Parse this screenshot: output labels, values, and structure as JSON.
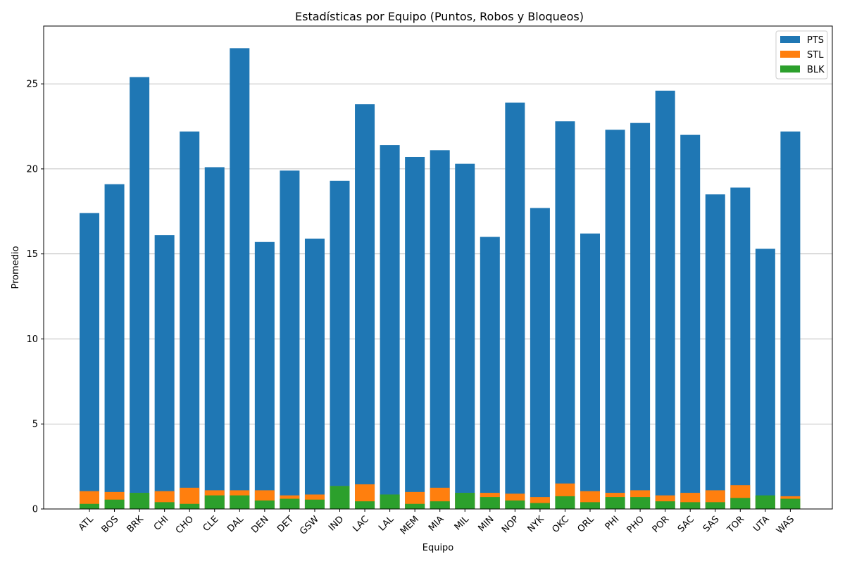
{
  "chart_data": {
    "type": "bar",
    "stacked": "overlay",
    "title": "Estadísticas por Equipo (Puntos, Robos y Bloqueos)",
    "xlabel": "Equipo",
    "ylabel": "Promedio",
    "ylim": [
      0,
      28.4
    ],
    "yticks": [
      0,
      5,
      10,
      15,
      20,
      25
    ],
    "grid": "y",
    "legend_position": "top-right",
    "categories": [
      "ATL",
      "BOS",
      "BRK",
      "CHI",
      "CHO",
      "CLE",
      "DAL",
      "DEN",
      "DET",
      "GSW",
      "IND",
      "LAC",
      "LAL",
      "MEM",
      "MIA",
      "MIL",
      "MIN",
      "NOP",
      "NYK",
      "OKC",
      "ORL",
      "PHI",
      "PHO",
      "POR",
      "SAC",
      "SAS",
      "TOR",
      "UTA",
      "WAS"
    ],
    "series": [
      {
        "name": "PTS",
        "color": "#1f77b4",
        "values": [
          17.4,
          19.1,
          25.4,
          16.1,
          22.2,
          20.1,
          27.1,
          15.7,
          19.9,
          15.9,
          19.3,
          23.8,
          21.4,
          20.7,
          21.1,
          20.3,
          16.0,
          23.9,
          17.7,
          22.8,
          16.2,
          22.3,
          22.7,
          24.6,
          22.0,
          18.5,
          18.9,
          15.3,
          22.2
        ]
      },
      {
        "name": "STL",
        "color": "#ff7f0e",
        "values": [
          1.05,
          1.0,
          0.95,
          1.05,
          1.25,
          1.1,
          1.1,
          1.1,
          0.8,
          0.85,
          1.35,
          1.45,
          0.85,
          1.0,
          1.25,
          0.95,
          0.95,
          0.9,
          0.7,
          1.5,
          1.05,
          0.95,
          1.1,
          0.8,
          0.95,
          1.1,
          1.4,
          0.75,
          0.75
        ]
      },
      {
        "name": "BLK",
        "color": "#2ca02c",
        "values": [
          0.3,
          0.55,
          0.95,
          0.4,
          0.3,
          0.8,
          0.8,
          0.5,
          0.6,
          0.55,
          1.35,
          0.45,
          0.85,
          0.3,
          0.45,
          0.95,
          0.7,
          0.5,
          0.35,
          0.75,
          0.4,
          0.7,
          0.7,
          0.45,
          0.4,
          0.4,
          0.65,
          0.8,
          0.6
        ]
      }
    ]
  }
}
